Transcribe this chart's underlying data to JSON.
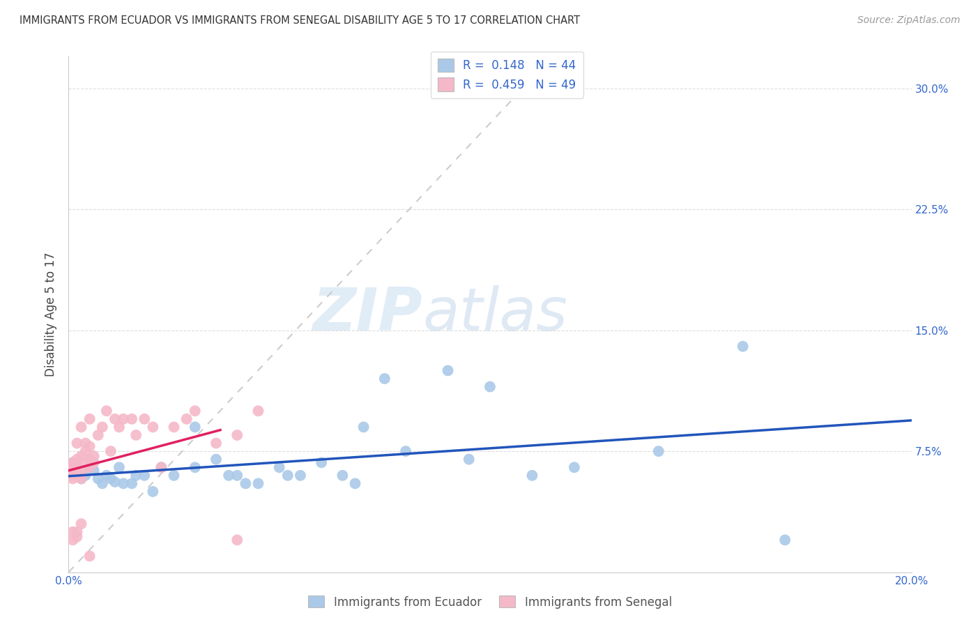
{
  "title": "IMMIGRANTS FROM ECUADOR VS IMMIGRANTS FROM SENEGAL DISABILITY AGE 5 TO 17 CORRELATION CHART",
  "source": "Source: ZipAtlas.com",
  "ylabel": "Disability Age 5 to 17",
  "xlim": [
    0.0,
    0.2
  ],
  "ylim": [
    0.0,
    0.32
  ],
  "xticks": [
    0.0,
    0.05,
    0.1,
    0.15,
    0.2
  ],
  "xticklabels": [
    "0.0%",
    "",
    "",
    "",
    "20.0%"
  ],
  "yticks": [
    0.0,
    0.075,
    0.15,
    0.225,
    0.3
  ],
  "yticklabels": [
    "",
    "7.5%",
    "15.0%",
    "22.5%",
    "30.0%"
  ],
  "ecuador_color": "#aac9e8",
  "senegal_color": "#f5b8c8",
  "ecuador_line_color": "#2255bb",
  "senegal_line_color": "#e02060",
  "diagonal_color": "#cccccc",
  "R_ecuador": 0.148,
  "N_ecuador": 44,
  "R_senegal": 0.459,
  "N_senegal": 49,
  "watermark_zip": "ZIP",
  "watermark_atlas": "atlas",
  "ecuador_x": [
    0.001,
    0.001,
    0.002,
    0.003,
    0.004,
    0.005,
    0.006,
    0.007,
    0.008,
    0.009,
    0.01,
    0.011,
    0.012,
    0.013,
    0.015,
    0.016,
    0.018,
    0.02,
    0.022,
    0.025,
    0.03,
    0.03,
    0.035,
    0.038,
    0.04,
    0.042,
    0.045,
    0.05,
    0.052,
    0.055,
    0.06,
    0.065,
    0.068,
    0.07,
    0.075,
    0.08,
    0.09,
    0.095,
    0.1,
    0.11,
    0.12,
    0.14,
    0.16,
    0.17
  ],
  "ecuador_y": [
    0.068,
    0.06,
    0.062,
    0.058,
    0.06,
    0.065,
    0.063,
    0.058,
    0.055,
    0.06,
    0.058,
    0.056,
    0.065,
    0.055,
    0.055,
    0.06,
    0.06,
    0.05,
    0.065,
    0.06,
    0.09,
    0.065,
    0.07,
    0.06,
    0.06,
    0.055,
    0.055,
    0.065,
    0.06,
    0.06,
    0.068,
    0.06,
    0.055,
    0.09,
    0.12,
    0.075,
    0.125,
    0.07,
    0.115,
    0.06,
    0.065,
    0.075,
    0.14,
    0.02
  ],
  "senegal_x": [
    0.001,
    0.001,
    0.001,
    0.001,
    0.001,
    0.001,
    0.001,
    0.001,
    0.002,
    0.002,
    0.002,
    0.002,
    0.002,
    0.002,
    0.003,
    0.003,
    0.003,
    0.003,
    0.004,
    0.004,
    0.004,
    0.005,
    0.005,
    0.005,
    0.005,
    0.006,
    0.006,
    0.007,
    0.008,
    0.009,
    0.01,
    0.011,
    0.012,
    0.013,
    0.015,
    0.016,
    0.018,
    0.02,
    0.022,
    0.025,
    0.028,
    0.03,
    0.035,
    0.04,
    0.045,
    0.005,
    0.003,
    0.002,
    0.04
  ],
  "senegal_y": [
    0.06,
    0.062,
    0.06,
    0.058,
    0.068,
    0.065,
    0.025,
    0.02,
    0.06,
    0.065,
    0.068,
    0.07,
    0.025,
    0.022,
    0.072,
    0.062,
    0.058,
    0.03,
    0.068,
    0.075,
    0.08,
    0.065,
    0.07,
    0.078,
    0.01,
    0.068,
    0.072,
    0.085,
    0.09,
    0.1,
    0.075,
    0.095,
    0.09,
    0.095,
    0.095,
    0.085,
    0.095,
    0.09,
    0.065,
    0.09,
    0.095,
    0.1,
    0.08,
    0.085,
    0.1,
    0.095,
    0.09,
    0.08,
    0.02
  ]
}
